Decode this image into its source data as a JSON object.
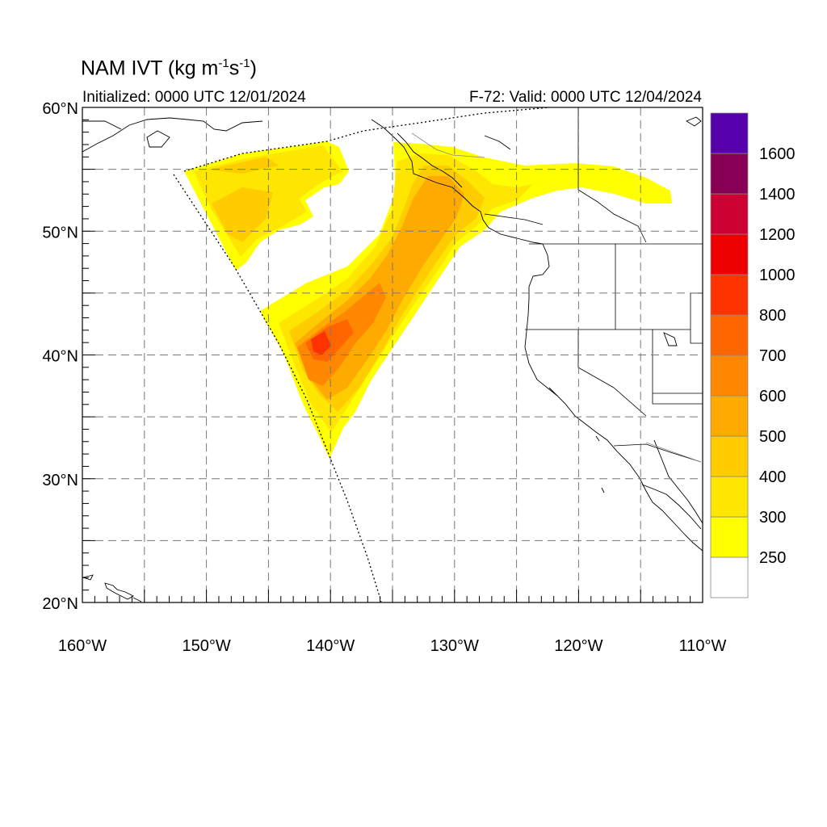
{
  "title": {
    "main": "NAM IVT (kg m",
    "exp1": "-1",
    "mid": "s",
    "exp2": "-1",
    "close": ")"
  },
  "initialized": "Initialized: 0000 UTC 12/01/2024",
  "valid": "F-72: Valid: 0000 UTC 12/04/2024",
  "lat_labels": [
    {
      "value": 60,
      "text": "60°N"
    },
    {
      "value": 50,
      "text": "50°N"
    },
    {
      "value": 40,
      "text": "40°N"
    },
    {
      "value": 30,
      "text": "30°N"
    },
    {
      "value": 20,
      "text": "20°N"
    }
  ],
  "lon_labels": [
    {
      "value": -160,
      "text": "160°W"
    },
    {
      "value": -150,
      "text": "150°W"
    },
    {
      "value": -140,
      "text": "140°W"
    },
    {
      "value": -130,
      "text": "130°W"
    },
    {
      "value": -120,
      "text": "120°W"
    },
    {
      "value": -110,
      "text": "110°W"
    }
  ],
  "extent": {
    "lon": [
      -160,
      -110
    ],
    "lat": [
      20,
      60
    ]
  },
  "colorbar": {
    "bins": [
      {
        "label": "",
        "color": "#ffffff"
      },
      {
        "label": "250",
        "color": "#ffff00"
      },
      {
        "label": "300",
        "color": "#ffe600"
      },
      {
        "label": "400",
        "color": "#ffcc00"
      },
      {
        "label": "500",
        "color": "#ffaa00"
      },
      {
        "label": "600",
        "color": "#ff8800"
      },
      {
        "label": "700",
        "color": "#ff6600"
      },
      {
        "label": "800",
        "color": "#ff3300"
      },
      {
        "label": "1000",
        "color": "#ee0000"
      },
      {
        "label": "1200",
        "color": "#cc0033"
      },
      {
        "label": "1400",
        "color": "#880055"
      },
      {
        "label": "1600",
        "color": "#5500aa"
      }
    ]
  }
}
